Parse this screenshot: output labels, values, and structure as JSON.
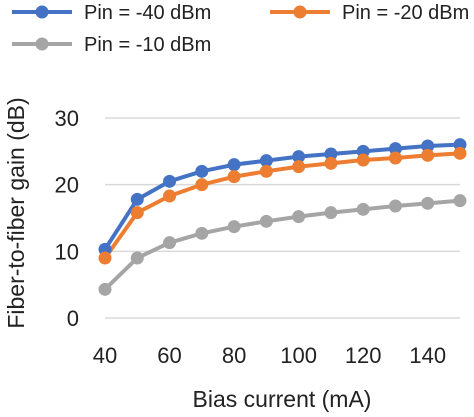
{
  "chart_data": {
    "type": "line",
    "xlabel": "Bias current (mA)",
    "ylabel": "Fiber-to-fiber gain (dB)",
    "x": [
      40,
      50,
      60,
      70,
      80,
      90,
      100,
      110,
      120,
      130,
      140,
      150
    ],
    "xlim": [
      40,
      150
    ],
    "ylim": [
      0,
      30
    ],
    "xticks": [
      40,
      60,
      80,
      100,
      120,
      140
    ],
    "yticks": [
      0,
      10,
      20,
      30
    ],
    "grid": true,
    "legend_position": "top",
    "series": [
      {
        "name": "Pin = -40 dBm",
        "color": "#4472C4",
        "values": [
          10.3,
          17.8,
          20.5,
          22.0,
          23.0,
          23.6,
          24.2,
          24.6,
          25.0,
          25.4,
          25.8,
          26.0
        ]
      },
      {
        "name": "Pin = -20 dBm",
        "color": "#ED7D31",
        "values": [
          9.0,
          15.8,
          18.3,
          20.0,
          21.2,
          22.0,
          22.7,
          23.2,
          23.7,
          24.0,
          24.4,
          24.7
        ]
      },
      {
        "name": "Pin = -10 dBm",
        "color": "#A5A5A5",
        "values": [
          4.3,
          9.0,
          11.3,
          12.7,
          13.7,
          14.5,
          15.2,
          15.8,
          16.3,
          16.8,
          17.2,
          17.6
        ]
      }
    ]
  }
}
